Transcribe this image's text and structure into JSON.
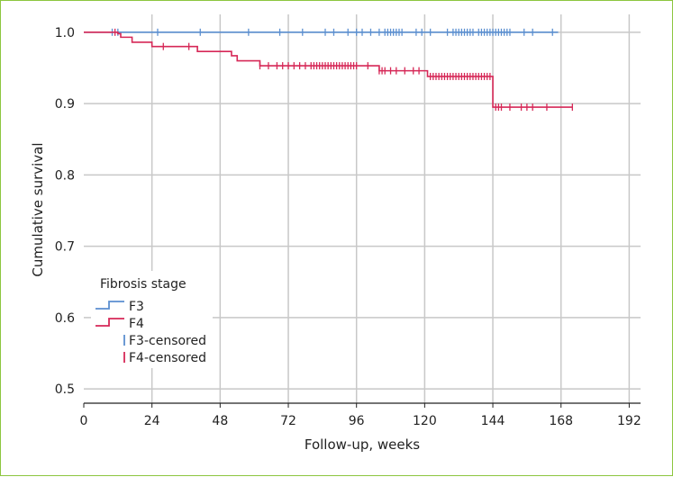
{
  "chart_data": {
    "type": "line",
    "title": "",
    "xlabel": "Follow-up, weeks",
    "ylabel": "Cumulative survival",
    "xlim": [
      0,
      196
    ],
    "ylim": [
      0.48,
      1.025
    ],
    "x_ticks": [
      0,
      24,
      48,
      72,
      96,
      120,
      144,
      168,
      192
    ],
    "y_ticks": [
      0.5,
      0.6,
      0.7,
      0.8,
      0.9,
      1.0
    ],
    "y_tick_labels": [
      "0.5",
      "0.6",
      "0.7",
      "0.8",
      "0.9",
      "1.0"
    ],
    "grid": true,
    "legend": {
      "title": "Fibrosis stage",
      "position": "bottom-left",
      "entries": [
        "F3",
        "F4",
        "F3-censored",
        "F4-censored"
      ]
    },
    "colors": {
      "F3": "#5b8fd0",
      "F4": "#d62857",
      "grid": "#c8c8c8",
      "frame": "#8cc63f"
    },
    "series": [
      {
        "name": "F3",
        "step": [
          [
            0,
            1.0
          ],
          [
            167,
            1.0
          ]
        ],
        "censored": [
          10,
          12,
          26,
          41,
          58,
          69,
          77,
          85,
          88,
          93,
          96,
          98,
          101,
          104,
          106,
          107,
          108,
          109,
          110,
          111,
          112,
          117,
          119,
          122,
          128,
          130,
          131,
          132,
          133,
          134,
          135,
          136,
          137,
          139,
          140,
          141,
          142,
          143,
          144,
          145,
          146,
          147,
          148,
          149,
          150,
          155,
          158,
          165
        ]
      },
      {
        "name": "F4",
        "step": [
          [
            0,
            1.0
          ],
          [
            12,
            0.998
          ],
          [
            13,
            0.993
          ],
          [
            17,
            0.986
          ],
          [
            24,
            0.98
          ],
          [
            40,
            0.973
          ],
          [
            52,
            0.967
          ],
          [
            54,
            0.96
          ],
          [
            62,
            0.953
          ],
          [
            104,
            0.946
          ],
          [
            121,
            0.938
          ],
          [
            144,
            0.895
          ],
          [
            172,
            0.895
          ]
        ],
        "censored": [
          11,
          28,
          37,
          62,
          65,
          68,
          70,
          72,
          74,
          76,
          78,
          80,
          81,
          82,
          83,
          84,
          85,
          86,
          87,
          88,
          89,
          90,
          91,
          92,
          93,
          94,
          95,
          96,
          100,
          104,
          105,
          106,
          108,
          110,
          113,
          116,
          118,
          122,
          123,
          124,
          125,
          126,
          127,
          128,
          129,
          130,
          131,
          132,
          133,
          134,
          135,
          136,
          137,
          138,
          139,
          140,
          141,
          142,
          143,
          145,
          146,
          147,
          150,
          154,
          156,
          158,
          163,
          172
        ]
      }
    ]
  }
}
